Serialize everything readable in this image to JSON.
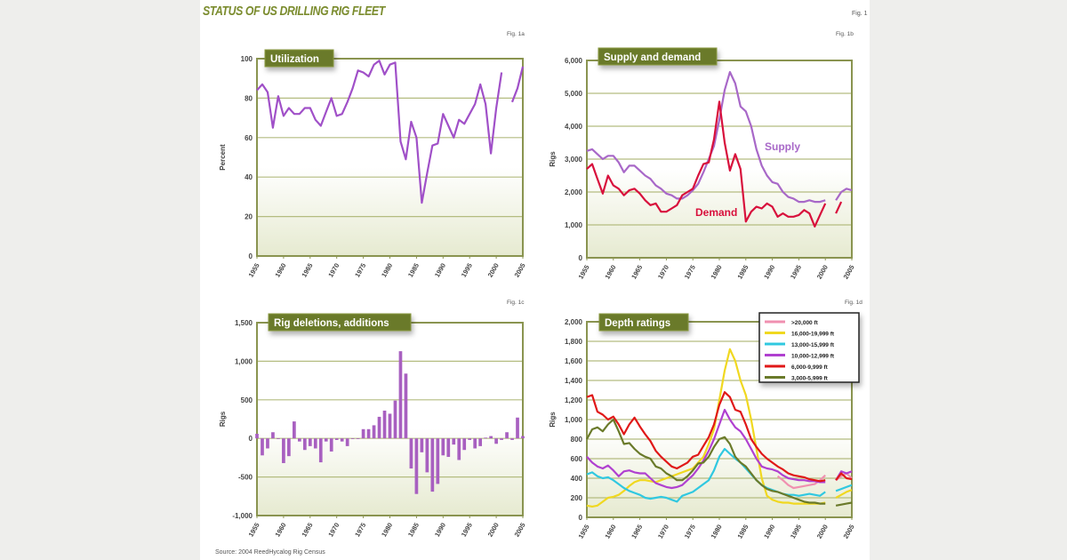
{
  "title": "Status of US drilling rig fleet",
  "fig_main": "Fig. 1",
  "source": "Source: 2004 ReedHycalog Rig Census",
  "colors": {
    "badge": "#6b7a2a",
    "grid": "#b4bc80",
    "frame": "#8a9450"
  },
  "chart_data": [
    {
      "id": "util",
      "fig": "Fig. 1a",
      "type": "line",
      "title": "Utilization",
      "ylabel": "Percent",
      "ylim": [
        0,
        100
      ],
      "xlim": [
        1955,
        2005
      ],
      "yticks": [
        0,
        20,
        40,
        60,
        80,
        100
      ],
      "ytick_labels": [
        "0",
        "20",
        "40",
        "60",
        "80",
        "100"
      ],
      "xtick_labels": [
        "1955",
        "1960",
        "1965",
        "1970",
        "1975",
        "1980",
        "1985",
        "1990",
        "1995",
        "2000",
        "2005"
      ],
      "grid": true,
      "x_start": 1955,
      "series": [
        {
          "color": "#a050c8",
          "values": [
            84,
            87,
            83,
            65,
            81,
            71,
            75,
            72,
            72,
            75,
            75,
            69,
            66,
            73,
            80,
            71,
            72,
            78,
            85,
            94,
            93,
            91,
            97,
            99,
            92,
            97,
            98,
            58,
            49,
            68,
            60,
            27,
            42,
            56,
            57,
            72,
            66,
            60,
            69,
            67,
            72,
            77,
            87,
            77,
            52,
            75,
            93,
            null,
            78,
            85,
            96
          ]
        }
      ]
    },
    {
      "id": "sd",
      "fig": "Fig. 1b",
      "type": "line",
      "title": "Supply and demand",
      "ylabel": "Rigs",
      "ylim": [
        0,
        6000
      ],
      "xlim": [
        1955,
        2005
      ],
      "yticks": [
        0,
        1000,
        2000,
        3000,
        4000,
        5000,
        6000
      ],
      "ytick_labels": [
        "0",
        "1,000",
        "2,000",
        "3,000",
        "4,000",
        "5,000",
        "6,000"
      ],
      "xtick_labels": [
        "1955",
        "1960",
        "1965",
        "1970",
        "1975",
        "1980",
        "1985",
        "1990",
        "1995",
        "2000",
        "2005"
      ],
      "grid": true,
      "x_start": 1955,
      "series": [
        {
          "name": "Supply",
          "color": "#a868c8",
          "values": [
            3250,
            3300,
            3150,
            3000,
            3100,
            3100,
            2900,
            2600,
            2800,
            2800,
            2650,
            2500,
            2400,
            2200,
            2100,
            1950,
            1900,
            1800,
            1800,
            1900,
            2050,
            2250,
            2600,
            3000,
            3400,
            4200,
            5100,
            5650,
            5300,
            4600,
            4450,
            4000,
            3300,
            2800,
            2500,
            2300,
            2250,
            2000,
            1850,
            1800,
            1700,
            1700,
            1750,
            1700,
            1700,
            1750,
            null,
            1750,
            2000,
            2100,
            2050
          ]
        },
        {
          "name": "Demand",
          "color": "#d8103c",
          "values": [
            2700,
            2850,
            2400,
            1950,
            2500,
            2200,
            2100,
            1900,
            2050,
            2100,
            1950,
            1750,
            1600,
            1650,
            1400,
            1400,
            1500,
            1600,
            1900,
            2000,
            2100,
            2500,
            2850,
            2900,
            3600,
            4750,
            3500,
            2650,
            3150,
            2700,
            1100,
            1400,
            1550,
            1500,
            1650,
            1550,
            1250,
            1350,
            1250,
            1250,
            1300,
            1450,
            1350,
            950,
            1300,
            1650,
            null,
            1350,
            1700,
            null,
            null
          ]
        }
      ]
    },
    {
      "id": "del",
      "fig": "Fig. 1c",
      "type": "bar",
      "title": "Rig deletions, additions",
      "ylabel": "Rigs",
      "ylim": [
        -1000,
        1500
      ],
      "xlim": [
        1955,
        2005
      ],
      "yticks": [
        -1000,
        -500,
        0,
        500,
        1000,
        1500
      ],
      "ytick_labels": [
        "-1,000",
        "-500",
        "0",
        "500",
        "1,000",
        "1,500"
      ],
      "xtick_labels": [
        "1955",
        "1960",
        "1965",
        "1970",
        "1975",
        "1980",
        "1985",
        "1990",
        "1995",
        "2000",
        "2005"
      ],
      "grid": true,
      "x_start": 1955,
      "series": [
        {
          "color": "#a860c0",
          "values": [
            60,
            -220,
            -130,
            80,
            0,
            -320,
            -230,
            220,
            -40,
            -150,
            -100,
            -130,
            -310,
            -40,
            -170,
            -20,
            -40,
            -100,
            0,
            0,
            120,
            120,
            170,
            280,
            360,
            320,
            490,
            1130,
            840,
            -390,
            -720,
            -180,
            -440,
            -690,
            -590,
            -220,
            -240,
            -80,
            -280,
            -150,
            -20,
            -130,
            -100,
            10,
            30,
            -70,
            -20,
            80,
            -20,
            270,
            30
          ]
        }
      ]
    },
    {
      "id": "depth",
      "fig": "Fig. 1d",
      "type": "line",
      "title": "Depth ratings",
      "ylabel": "Rigs",
      "ylim": [
        0,
        2000
      ],
      "xlim": [
        1955,
        2005
      ],
      "yticks": [
        0,
        200,
        400,
        600,
        800,
        1000,
        1200,
        1400,
        1600,
        1800,
        2000
      ],
      "ytick_labels": [
        "0",
        "200",
        "400",
        "600",
        "800",
        "1,000",
        "1,200",
        "1,400",
        "1,600",
        "1,800",
        "2,000"
      ],
      "xtick_labels": [
        "1955",
        "1960",
        "1965",
        "1970",
        "1975",
        "1980",
        "1985",
        "1990",
        "1995",
        "2000",
        "2005"
      ],
      "grid": true,
      "legend": "top-right",
      "x_start": 1955,
      "series": [
        {
          "name": ">20,000 ft",
          "color": "#f090b0",
          "values": [
            null,
            null,
            null,
            null,
            null,
            null,
            null,
            null,
            null,
            null,
            null,
            null,
            null,
            null,
            null,
            null,
            null,
            null,
            null,
            null,
            null,
            null,
            null,
            null,
            null,
            null,
            null,
            null,
            null,
            null,
            null,
            null,
            null,
            null,
            null,
            null,
            420,
            380,
            330,
            300,
            310,
            320,
            330,
            340,
            380,
            430,
            null,
            380,
            420,
            450,
            400
          ]
        },
        {
          "name": "16,000-19,999 ft",
          "color": "#f0d820",
          "values": [
            120,
            110,
            120,
            160,
            200,
            210,
            230,
            270,
            320,
            360,
            380,
            380,
            370,
            360,
            380,
            400,
            420,
            440,
            460,
            480,
            500,
            560,
            620,
            750,
            900,
            1200,
            1500,
            1720,
            1600,
            1400,
            1250,
            1000,
            700,
            400,
            220,
            180,
            160,
            150,
            150,
            140,
            140,
            140,
            140,
            140,
            140,
            150,
            null,
            200,
            230,
            260,
            280
          ]
        },
        {
          "name": "13,000-15,999 ft",
          "color": "#30c8e0",
          "values": [
            440,
            460,
            420,
            400,
            410,
            380,
            340,
            300,
            270,
            250,
            230,
            200,
            190,
            200,
            210,
            200,
            180,
            160,
            220,
            240,
            260,
            300,
            340,
            380,
            480,
            620,
            700,
            650,
            600,
            560,
            500,
            440,
            380,
            330,
            300,
            280,
            260,
            240,
            230,
            230,
            220,
            230,
            240,
            230,
            220,
            260,
            null,
            270,
            290,
            310,
            330
          ]
        },
        {
          "name": "10,000-12,999 ft",
          "color": "#b040d0",
          "values": [
            620,
            560,
            520,
            500,
            530,
            480,
            420,
            470,
            480,
            460,
            450,
            450,
            400,
            350,
            330,
            310,
            300,
            310,
            330,
            380,
            430,
            500,
            580,
            680,
            800,
            950,
            1100,
            1000,
            920,
            880,
            800,
            700,
            600,
            520,
            500,
            490,
            470,
            430,
            400,
            390,
            380,
            380,
            370,
            370,
            360,
            360,
            null,
            380,
            470,
            450,
            470
          ]
        },
        {
          "name": "6,000-9,999 ft",
          "color": "#e01818",
          "values": [
            1230,
            1250,
            1080,
            1050,
            1000,
            1030,
            950,
            850,
            950,
            1020,
            930,
            850,
            780,
            680,
            620,
            570,
            520,
            500,
            530,
            560,
            620,
            640,
            730,
            820,
            950,
            1150,
            1280,
            1230,
            1100,
            1080,
            950,
            800,
            720,
            650,
            600,
            560,
            520,
            490,
            450,
            430,
            420,
            410,
            390,
            380,
            370,
            380,
            null,
            380,
            450,
            400,
            390
          ]
        },
        {
          "name": "3,000-5,999 ft",
          "color": "#6a7a2a",
          "values": [
            800,
            900,
            920,
            880,
            950,
            1000,
            880,
            750,
            760,
            700,
            650,
            620,
            600,
            520,
            500,
            450,
            420,
            380,
            380,
            420,
            480,
            550,
            560,
            620,
            720,
            800,
            820,
            750,
            620,
            560,
            520,
            450,
            380,
            330,
            290,
            270,
            260,
            240,
            220,
            200,
            180,
            160,
            150,
            150,
            140,
            140,
            null,
            120,
            130,
            140,
            150
          ]
        }
      ]
    }
  ]
}
